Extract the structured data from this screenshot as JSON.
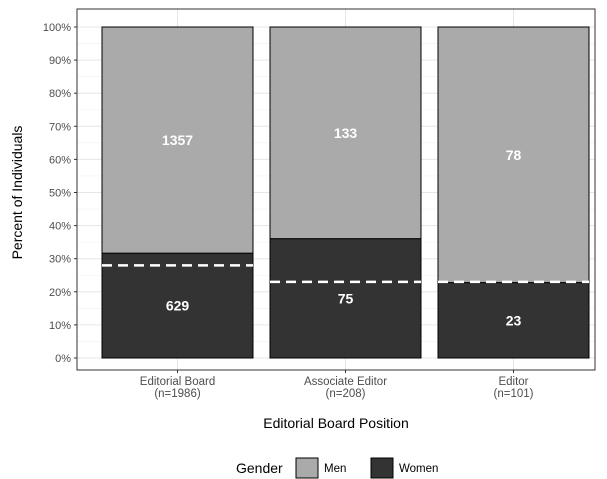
{
  "chart_data": {
    "type": "bar",
    "stacked": true,
    "normalized": true,
    "xlabel": "Editorial Board Position",
    "ylabel": "Percent of Individuals",
    "ylim": [
      0,
      100
    ],
    "y_ticks": [
      "0%",
      "10%",
      "20%",
      "30%",
      "40%",
      "50%",
      "60%",
      "70%",
      "80%",
      "90%",
      "100%"
    ],
    "grid": true,
    "legend_position": "bottom",
    "categories": [
      [
        "Editorial Board",
        "(n=1986)"
      ],
      [
        "Associate Editor",
        "(n=208)"
      ],
      [
        "Editor",
        "(n=101)"
      ]
    ],
    "series": [
      {
        "name": "Women",
        "values": [
          629,
          75,
          23
        ],
        "color": "#333333"
      },
      {
        "name": "Men",
        "values": [
          1357,
          133,
          78
        ],
        "color": "#aaaaaa"
      }
    ],
    "reference_lines_percent": [
      28,
      23,
      23
    ],
    "legend_title": "Gender",
    "legend_items": [
      {
        "label": "Men",
        "color": "#aaaaaa"
      },
      {
        "label": "Women",
        "color": "#333333"
      }
    ]
  }
}
